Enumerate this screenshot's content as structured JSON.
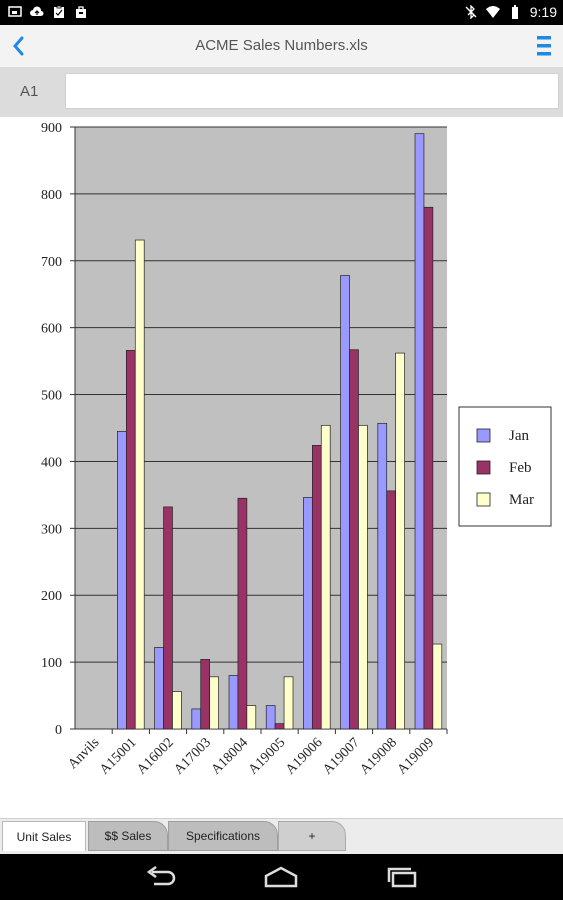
{
  "status_bar": {
    "time": "9:19",
    "left_icons": [
      "screen-icon",
      "cloud-upload-icon",
      "clipboard-icon",
      "bag-icon"
    ],
    "right_icons": [
      "bluetooth-off-icon",
      "wifi-icon",
      "battery-icon"
    ]
  },
  "action_bar": {
    "title": "ACME Sales Numbers.xls"
  },
  "formula_bar": {
    "cell_ref": "A1",
    "value": ""
  },
  "sheet_tabs": [
    {
      "label": "Unit Sales",
      "active": true
    },
    {
      "label": "$$ Sales",
      "active": false
    },
    {
      "label": "Specifications",
      "active": false
    },
    {
      "label": "+",
      "active": false
    }
  ],
  "colors": {
    "jan": "#9999ff",
    "feb": "#993366",
    "mar": "#ffffcc",
    "plot_bg": "#c0c0c0",
    "accent": "#1e88e5"
  },
  "chart_data": {
    "type": "bar",
    "categories": [
      "Anvils",
      "A15001",
      "A16002",
      "A17003",
      "A18004",
      "A19005",
      "A19006",
      "A19007",
      "A19008",
      "A19009"
    ],
    "series": [
      {
        "name": "Jan",
        "values": [
          0,
          445,
          122,
          30,
          80,
          35,
          346,
          678,
          457,
          890
        ]
      },
      {
        "name": "Feb",
        "values": [
          0,
          566,
          332,
          104,
          345,
          8,
          424,
          567,
          356,
          780
        ]
      },
      {
        "name": "Mar",
        "values": [
          0,
          731,
          56,
          78,
          35,
          78,
          454,
          454,
          562,
          127
        ]
      }
    ],
    "ylim": [
      0,
      900
    ],
    "yticks": [
      "0",
      "100",
      "200",
      "300",
      "400",
      "500",
      "600",
      "700",
      "800",
      "900"
    ],
    "grid": true,
    "legend_position": "right"
  }
}
